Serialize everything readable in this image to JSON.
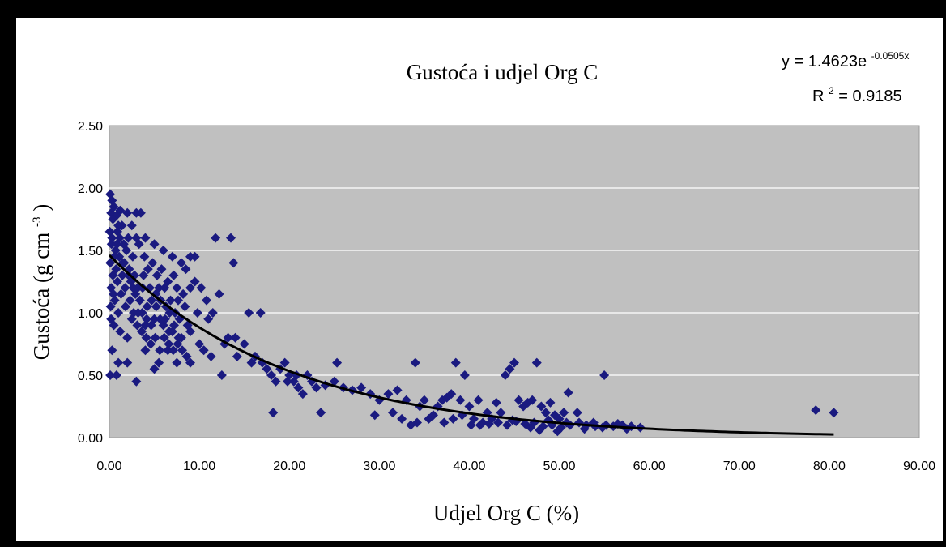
{
  "chart_data": {
    "type": "scatter",
    "title": "Gustoća i udjel Org C",
    "xlabel": "Udjel Org C (%)",
    "ylabel_main": "Gustoća (g cm",
    "ylabel_sup": "-3",
    "ylabel_close": ")",
    "xlim": [
      0,
      90
    ],
    "ylim": [
      0,
      2.5
    ],
    "x_ticks": [
      0,
      10,
      20,
      30,
      40,
      50,
      60,
      70,
      80,
      90
    ],
    "x_tick_labels": [
      "0.00",
      "10.00",
      "20.00",
      "30.00",
      "40.00",
      "50.00",
      "60.00",
      "70.00",
      "80.00",
      "90.00"
    ],
    "y_ticks": [
      0,
      0.5,
      1,
      1.5,
      2,
      2.5
    ],
    "y_tick_labels": [
      "0.00",
      "0.50",
      "1.00",
      "1.50",
      "2.00",
      "2.50"
    ],
    "grid": "horizontal",
    "equation": {
      "line1_prefix": "y = 1.4623e",
      "line1_exponent": "-0.0505x",
      "line2_prefix": "R",
      "line2_sup": "2",
      "line2_suffix": " = 0.9185"
    },
    "trendline": {
      "type": "exponential",
      "a": 1.4623,
      "b": -0.0505,
      "x_range": [
        0,
        80.5
      ]
    },
    "colors": {
      "marker": "#1a1a80",
      "plot_bg": "#c0c0c0",
      "grid": "#ffffff",
      "trendline": "#000000"
    },
    "series": [
      {
        "marker": "diamond",
        "points": [
          [
            0.1,
            1.95
          ],
          [
            0.3,
            1.9
          ],
          [
            0.5,
            1.85
          ],
          [
            0.2,
            1.8
          ],
          [
            0.8,
            1.78
          ],
          [
            1.2,
            1.82
          ],
          [
            2.0,
            1.8
          ],
          [
            3.0,
            1.8
          ],
          [
            3.5,
            1.8
          ],
          [
            1.0,
            1.7
          ],
          [
            2.5,
            1.7
          ],
          [
            3.0,
            1.6
          ],
          [
            4.0,
            1.6
          ],
          [
            5.0,
            1.55
          ],
          [
            6.0,
            1.5
          ],
          [
            7.0,
            1.45
          ],
          [
            8.0,
            1.4
          ],
          [
            9.0,
            1.45
          ],
          [
            8.5,
            1.35
          ],
          [
            0.3,
            1.6
          ],
          [
            0.7,
            1.5
          ],
          [
            1.5,
            1.4
          ],
          [
            2.2,
            1.35
          ],
          [
            2.8,
            1.3
          ],
          [
            3.8,
            1.3
          ],
          [
            4.5,
            1.2
          ],
          [
            5.5,
            1.2
          ],
          [
            6.5,
            1.25
          ],
          [
            7.5,
            1.2
          ],
          [
            8.2,
            1.15
          ],
          [
            9.0,
            1.2
          ],
          [
            9.5,
            1.25
          ],
          [
            9.8,
            1.0
          ],
          [
            0.2,
            1.2
          ],
          [
            0.6,
            1.1
          ],
          [
            1.0,
            1.0
          ],
          [
            1.8,
            1.05
          ],
          [
            2.5,
            0.95
          ],
          [
            3.2,
            1.0
          ],
          [
            4.0,
            0.9
          ],
          [
            5.0,
            0.95
          ],
          [
            6.0,
            0.9
          ],
          [
            7.0,
            0.85
          ],
          [
            8.0,
            0.8
          ],
          [
            9.0,
            0.85
          ],
          [
            10.0,
            0.75
          ],
          [
            0.2,
            0.95
          ],
          [
            0.5,
            0.9
          ],
          [
            1.2,
            0.85
          ],
          [
            2.0,
            0.8
          ],
          [
            0.3,
            0.7
          ],
          [
            1.0,
            0.6
          ],
          [
            0.1,
            0.5
          ],
          [
            0.8,
            0.5
          ],
          [
            2.0,
            0.6
          ],
          [
            3.0,
            0.45
          ],
          [
            4.0,
            0.7
          ],
          [
            5.0,
            0.55
          ],
          [
            5.5,
            0.6
          ],
          [
            6.5,
            0.7
          ],
          [
            7.5,
            0.6
          ],
          [
            9.0,
            0.6
          ],
          [
            0.1,
            1.4
          ],
          [
            0.4,
            1.3
          ],
          [
            0.9,
            1.25
          ],
          [
            1.3,
            1.15
          ],
          [
            1.6,
            1.55
          ],
          [
            2.1,
            1.6
          ],
          [
            2.6,
            1.45
          ],
          [
            3.3,
            1.55
          ],
          [
            3.9,
            1.45
          ],
          [
            4.3,
            1.35
          ],
          [
            4.8,
            1.4
          ],
          [
            5.3,
            1.3
          ],
          [
            5.8,
            1.35
          ],
          [
            6.3,
            1.05
          ],
          [
            6.8,
            1.1
          ],
          [
            7.3,
            1.0
          ],
          [
            7.8,
            0.95
          ],
          [
            8.4,
            1.05
          ],
          [
            0.4,
            1.75
          ],
          [
            0.9,
            1.65
          ],
          [
            1.4,
            1.7
          ],
          [
            1.9,
            1.5
          ],
          [
            2.4,
            1.25
          ],
          [
            2.9,
            1.15
          ],
          [
            3.4,
            1.1
          ],
          [
            3.7,
            1.2
          ],
          [
            4.2,
            1.05
          ],
          [
            4.7,
            1.1
          ],
          [
            5.2,
            1.05
          ],
          [
            5.7,
            1.1
          ],
          [
            6.2,
            0.95
          ],
          [
            6.7,
            1.0
          ],
          [
            7.2,
            0.9
          ],
          [
            7.7,
            0.8
          ],
          [
            8.7,
            0.9
          ],
          [
            0.15,
            1.05
          ],
          [
            0.45,
            1.15
          ],
          [
            0.75,
            1.35
          ],
          [
            1.1,
            1.45
          ],
          [
            1.45,
            1.3
          ],
          [
            1.75,
            1.2
          ],
          [
            2.3,
            1.1
          ],
          [
            2.7,
            1.0
          ],
          [
            3.1,
            0.9
          ],
          [
            3.6,
            0.85
          ],
          [
            4.1,
            0.8
          ],
          [
            4.6,
            0.75
          ],
          [
            5.1,
            0.8
          ],
          [
            5.6,
            0.7
          ],
          [
            6.1,
            0.8
          ],
          [
            6.6,
            0.75
          ],
          [
            7.1,
            0.7
          ],
          [
            7.6,
            0.75
          ],
          [
            8.1,
            0.7
          ],
          [
            8.6,
            0.65
          ],
          [
            0.05,
            1.65
          ],
          [
            0.25,
            1.55
          ],
          [
            0.55,
            1.45
          ],
          [
            0.85,
            1.55
          ],
          [
            1.15,
            1.6
          ],
          [
            1.65,
            1.4
          ],
          [
            2.15,
            1.3
          ],
          [
            2.65,
            1.2
          ],
          [
            3.15,
            1.2
          ],
          [
            3.65,
            1.0
          ],
          [
            4.15,
            0.95
          ],
          [
            4.65,
            0.9
          ],
          [
            5.15,
            1.15
          ],
          [
            5.65,
            0.95
          ],
          [
            6.15,
            1.2
          ],
          [
            6.65,
            0.85
          ],
          [
            7.15,
            1.3
          ],
          [
            7.65,
            1.1
          ],
          [
            9.5,
            1.45
          ],
          [
            10.2,
            1.2
          ],
          [
            10.8,
            1.1
          ],
          [
            11.0,
            0.95
          ],
          [
            11.5,
            1.0
          ],
          [
            11.8,
            1.6
          ],
          [
            12.2,
            1.15
          ],
          [
            12.8,
            0.75
          ],
          [
            13.2,
            0.8
          ],
          [
            13.5,
            1.6
          ],
          [
            13.8,
            1.4
          ],
          [
            14.2,
            0.65
          ],
          [
            14.0,
            0.8
          ],
          [
            12.5,
            0.5
          ],
          [
            10.5,
            0.7
          ],
          [
            11.3,
            0.65
          ],
          [
            15.5,
            1.0
          ],
          [
            16.8,
            1.0
          ],
          [
            15.0,
            0.75
          ],
          [
            15.8,
            0.6
          ],
          [
            16.2,
            0.65
          ],
          [
            17.0,
            0.6
          ],
          [
            17.5,
            0.55
          ],
          [
            18.0,
            0.5
          ],
          [
            18.5,
            0.45
          ],
          [
            19.0,
            0.55
          ],
          [
            19.5,
            0.6
          ],
          [
            20.0,
            0.5
          ],
          [
            20.5,
            0.45
          ],
          [
            21.0,
            0.4
          ],
          [
            21.5,
            0.35
          ],
          [
            18.2,
            0.2
          ],
          [
            19.8,
            0.45
          ],
          [
            20.8,
            0.5
          ],
          [
            22.0,
            0.5
          ],
          [
            22.5,
            0.45
          ],
          [
            23.0,
            0.4
          ],
          [
            23.5,
            0.2
          ],
          [
            24.0,
            0.42
          ],
          [
            25.0,
            0.45
          ],
          [
            25.3,
            0.6
          ],
          [
            26.0,
            0.4
          ],
          [
            27.0,
            0.38
          ],
          [
            28.0,
            0.4
          ],
          [
            29.0,
            0.35
          ],
          [
            30.0,
            0.3
          ],
          [
            29.5,
            0.18
          ],
          [
            31.0,
            0.35
          ],
          [
            32.0,
            0.38
          ],
          [
            31.5,
            0.2
          ],
          [
            33.0,
            0.3
          ],
          [
            34.0,
            0.6
          ],
          [
            34.5,
            0.25
          ],
          [
            35.0,
            0.3
          ],
          [
            36.0,
            0.18
          ],
          [
            36.5,
            0.25
          ],
          [
            37.0,
            0.3
          ],
          [
            37.5,
            0.32
          ],
          [
            38.0,
            0.35
          ],
          [
            38.5,
            0.6
          ],
          [
            39.0,
            0.3
          ],
          [
            39.5,
            0.5
          ],
          [
            40.0,
            0.25
          ],
          [
            41.0,
            0.3
          ],
          [
            42.0,
            0.2
          ],
          [
            32.5,
            0.15
          ],
          [
            33.5,
            0.1
          ],
          [
            34.2,
            0.12
          ],
          [
            35.5,
            0.15
          ],
          [
            37.2,
            0.12
          ],
          [
            38.2,
            0.15
          ],
          [
            39.2,
            0.18
          ],
          [
            40.5,
            0.15
          ],
          [
            41.5,
            0.12
          ],
          [
            42.5,
            0.15
          ],
          [
            43.0,
            0.28
          ],
          [
            43.5,
            0.2
          ],
          [
            44.0,
            0.5
          ],
          [
            44.5,
            0.55
          ],
          [
            45.0,
            0.6
          ],
          [
            45.5,
            0.3
          ],
          [
            46.0,
            0.25
          ],
          [
            46.5,
            0.28
          ],
          [
            47.0,
            0.3
          ],
          [
            47.5,
            0.6
          ],
          [
            48.0,
            0.25
          ],
          [
            48.5,
            0.2
          ],
          [
            49.0,
            0.28
          ],
          [
            49.5,
            0.18
          ],
          [
            50.0,
            0.15
          ],
          [
            50.5,
            0.2
          ],
          [
            51.0,
            0.36
          ],
          [
            52.0,
            0.2
          ],
          [
            55.0,
            0.5
          ],
          [
            43.2,
            0.12
          ],
          [
            44.2,
            0.1
          ],
          [
            45.2,
            0.13
          ],
          [
            46.2,
            0.11
          ],
          [
            47.2,
            0.12
          ],
          [
            48.2,
            0.09
          ],
          [
            49.2,
            0.1
          ],
          [
            50.2,
            0.08
          ],
          [
            51.2,
            0.1
          ],
          [
            52.2,
            0.12
          ],
          [
            53.0,
            0.1
          ],
          [
            54.0,
            0.09
          ],
          [
            55.2,
            0.1
          ],
          [
            56.0,
            0.09
          ],
          [
            57.0,
            0.1
          ],
          [
            58.0,
            0.09
          ],
          [
            59.0,
            0.08
          ],
          [
            40.2,
            0.1
          ],
          [
            41.2,
            0.1
          ],
          [
            42.2,
            0.11
          ],
          [
            44.8,
            0.14
          ],
          [
            46.8,
            0.08
          ],
          [
            48.8,
            0.14
          ],
          [
            50.8,
            0.12
          ],
          [
            52.8,
            0.07
          ],
          [
            53.8,
            0.12
          ],
          [
            54.8,
            0.08
          ],
          [
            56.5,
            0.11
          ],
          [
            57.5,
            0.07
          ],
          [
            49.8,
            0.05
          ],
          [
            47.8,
            0.06
          ],
          [
            78.5,
            0.22
          ],
          [
            80.5,
            0.2
          ]
        ]
      }
    ]
  }
}
